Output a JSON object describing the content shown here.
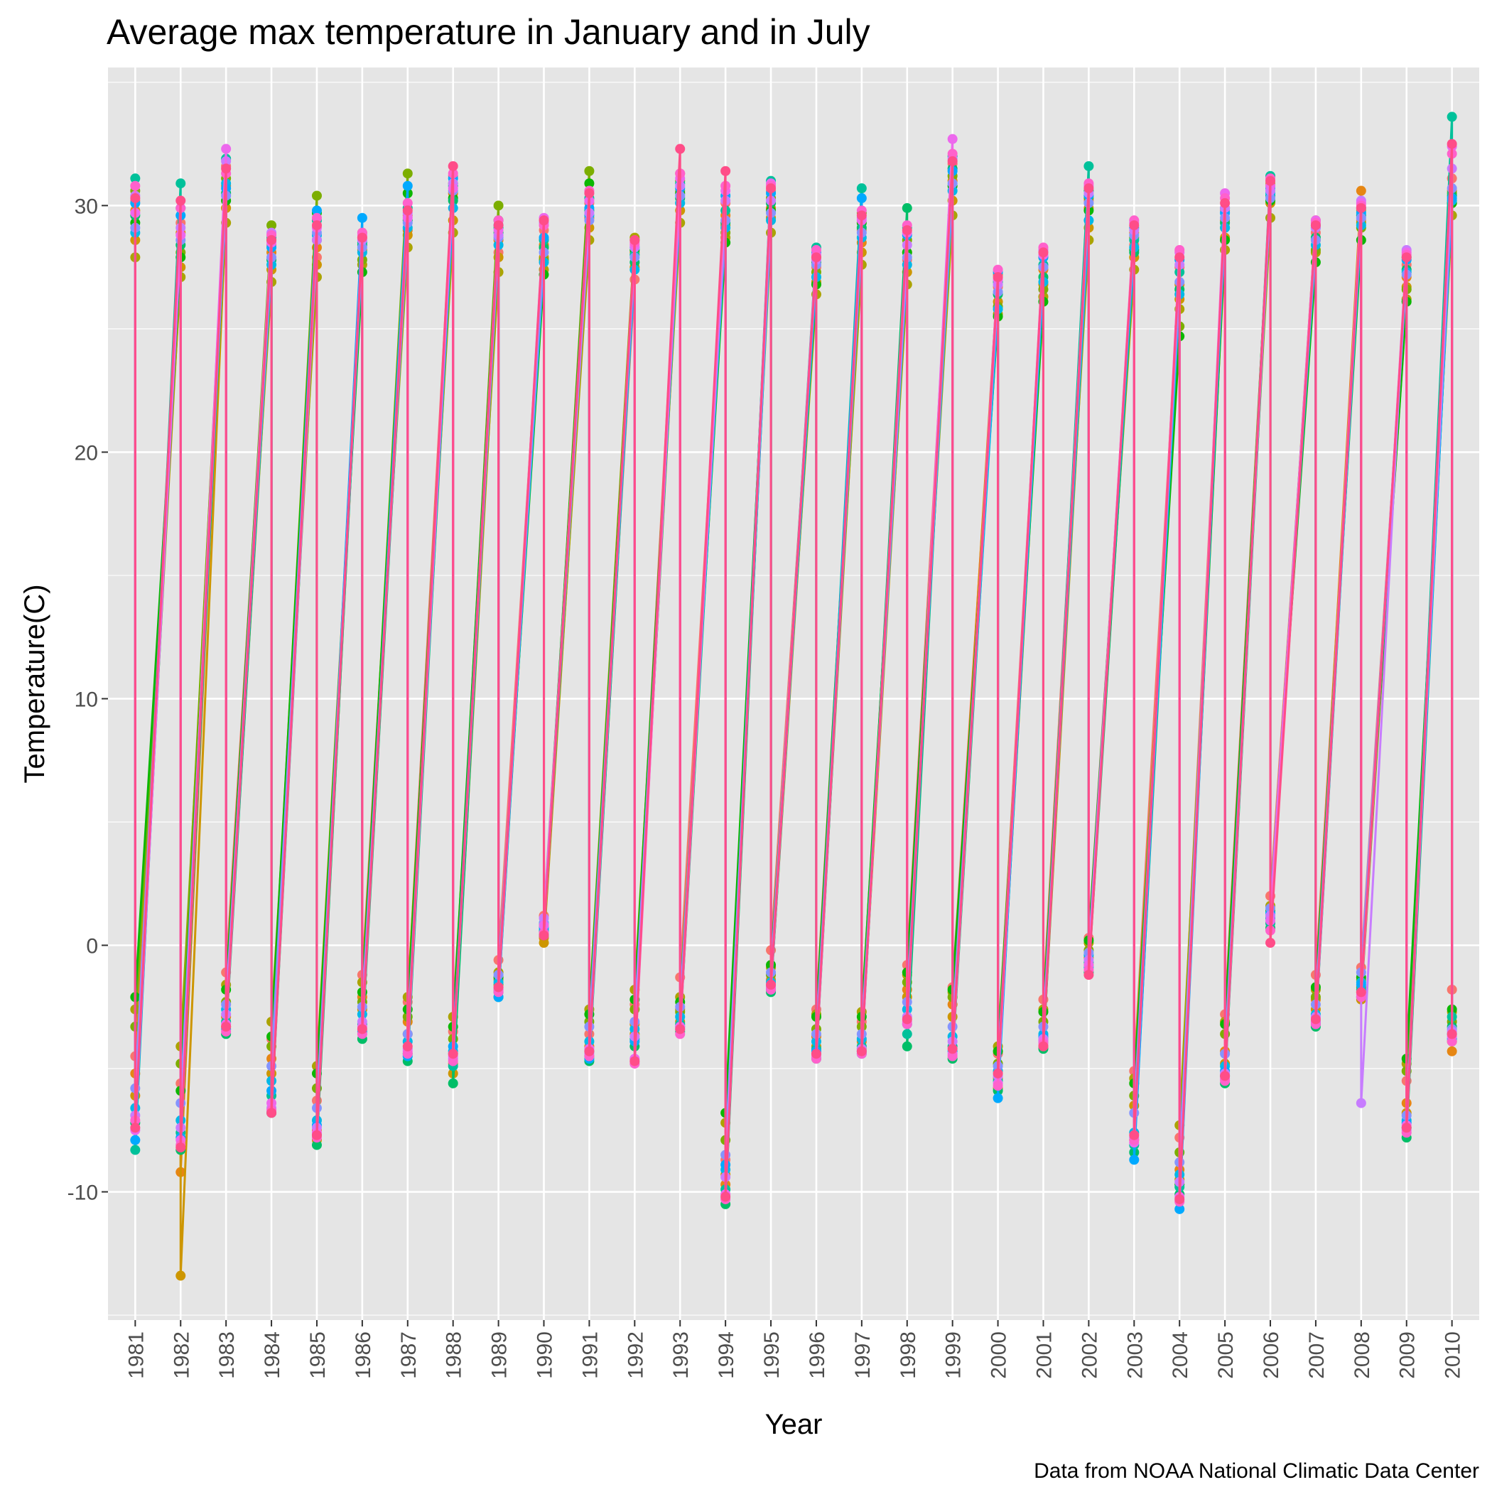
{
  "chart_data": {
    "type": "line",
    "title": "Average max temperature in January and in July",
    "xlabel": "Year",
    "ylabel": "Temperature(C)",
    "caption": "Data from NOAA National Climatic Data Center",
    "categories": [
      "1981",
      "1982",
      "1983",
      "1984",
      "1985",
      "1986",
      "1987",
      "1988",
      "1989",
      "1990",
      "1991",
      "1992",
      "1993",
      "1994",
      "1995",
      "1996",
      "1997",
      "1998",
      "1999",
      "2000",
      "2001",
      "2002",
      "2003",
      "2004",
      "2005",
      "2006",
      "2007",
      "2008",
      "2009",
      "2010"
    ],
    "xlim": [
      1980.4,
      2010.6
    ],
    "ylim": [
      -15.2,
      35.6
    ],
    "yticks": [
      -10,
      0,
      10,
      20,
      30
    ],
    "ytick_labels": [
      "-10",
      "0",
      "10",
      "20",
      "30"
    ],
    "grid": true,
    "legend": "none",
    "panel_background": "#e5e5e5",
    "gridline_color": "#ffffff",
    "marker": "point",
    "series": [
      {
        "color": "#F8766D",
        "july": [
          30.2,
          29.3,
          31.6,
          28.4,
          27.9,
          28.7,
          29.6,
          31.2,
          28.1,
          29.0,
          30.1,
          27.0,
          31.3,
          30.1,
          30.6,
          27.5,
          29.0,
          27.8,
          31.7,
          26.7,
          27.9,
          30.2,
          28.4,
          27.5,
          29.8,
          30.6,
          28.9,
          29.4,
          27.6,
          31.1
        ],
        "jan": [
          -4.5,
          -5.6,
          -1.1,
          -3.8,
          -6.3,
          -1.2,
          -2.3,
          -3.5,
          -0.6,
          1.2,
          -3.6,
          -2.4,
          -1.3,
          -8.7,
          -0.2,
          -2.6,
          -3.1,
          -0.8,
          -1.7,
          -4.4,
          -2.2,
          0.3,
          -5.1,
          -7.8,
          -2.8,
          2.0,
          -1.2,
          -0.9,
          -5.5,
          -1.8
        ]
      },
      {
        "color": "#E68613",
        "july": [
          29.8,
          28.9,
          30.8,
          28.1,
          28.3,
          28.9,
          29.0,
          30.5,
          28.6,
          28.4,
          29.5,
          28.1,
          30.6,
          29.6,
          29.9,
          27.9,
          28.5,
          28.1,
          31.0,
          27.2,
          27.4,
          29.9,
          28.9,
          26.8,
          29.4,
          30.9,
          29.4,
          30.6,
          27.1,
          30.6
        ],
        "jan": [
          -5.2,
          -9.2,
          -2.9,
          -4.6,
          -7.5,
          -2.1,
          -3.1,
          -4.8,
          -1.4,
          0.3,
          -4.1,
          -3.2,
          -2.6,
          -9.7,
          -1.4,
          -3.7,
          -3.9,
          -1.8,
          -2.4,
          -5.4,
          -3.8,
          -0.5,
          -7.9,
          -9.1,
          -4.3,
          1.2,
          -2.2,
          -1.9,
          -6.4,
          -4.3
        ]
      },
      {
        "color": "#CD9600",
        "july": [
          28.6,
          27.5,
          29.9,
          27.4,
          27.6,
          28.2,
          28.8,
          29.4,
          27.9,
          27.9,
          29.1,
          27.5,
          29.8,
          29.2,
          29.5,
          26.9,
          28.1,
          27.3,
          30.2,
          26.1,
          26.8,
          29.1,
          27.9,
          26.2,
          28.7,
          30.1,
          28.6,
          29.8,
          26.7,
          30.1
        ],
        "jan": [
          -6.1,
          -13.4,
          -3.3,
          -5.2,
          -7.9,
          -2.6,
          -3.6,
          -5.2,
          -1.8,
          0.1,
          -4.5,
          -3.6,
          -3.1,
          -9.3,
          -1.8,
          -4.1,
          -4.2,
          -2.1,
          -2.9,
          -5.8,
          -4.1,
          -0.8,
          -6.5,
          -9.5,
          -4.8,
          0.9,
          -2.6,
          -2.2,
          -6.8,
          -3.9
        ]
      },
      {
        "color": "#ABA300",
        "july": [
          27.9,
          27.1,
          29.3,
          26.9,
          27.1,
          27.6,
          28.3,
          28.9,
          27.3,
          27.4,
          28.6,
          28.7,
          29.3,
          28.7,
          28.9,
          26.4,
          27.6,
          26.8,
          29.6,
          25.6,
          26.3,
          28.6,
          27.4,
          25.8,
          28.2,
          29.5,
          28.1,
          29.3,
          26.2,
          29.6
        ],
        "jan": [
          -2.6,
          -4.1,
          -1.6,
          -3.1,
          -4.9,
          -1.5,
          -2.1,
          -2.9,
          -1.1,
          0.6,
          -2.6,
          -1.8,
          -2.1,
          -7.2,
          -0.9,
          -2.8,
          -2.7,
          -1.2,
          -1.9,
          -4.1,
          -2.6,
          0.1,
          -5.4,
          -7.3,
          -3.1,
          1.6,
          -1.8,
          -1.4,
          -4.8,
          -2.7
        ]
      },
      {
        "color": "#7CAE00",
        "july": [
          30.6,
          28.1,
          31.1,
          29.2,
          30.4,
          27.8,
          31.3,
          30.9,
          30.0,
          27.8,
          31.4,
          28.6,
          31.0,
          28.9,
          30.3,
          27.3,
          29.7,
          28.6,
          31.2,
          25.9,
          26.6,
          30.3,
          28.7,
          25.1,
          29.1,
          30.8,
          28.2,
          29.1,
          26.6,
          30.5
        ],
        "jan": [
          -3.3,
          -4.8,
          -2.3,
          -4.1,
          -5.8,
          -2.3,
          -2.9,
          -3.8,
          -1.6,
          0.5,
          -3.1,
          -2.6,
          -2.7,
          -7.9,
          -1.2,
          -3.4,
          -3.3,
          -1.5,
          -2.1,
          -4.8,
          -3.1,
          -0.2,
          -6.1,
          -8.4,
          -3.6,
          1.1,
          -2.1,
          -1.7,
          -5.1,
          -3.1
        ]
      },
      {
        "color": "#0CB702",
        "july": [
          29.3,
          27.9,
          30.2,
          28.6,
          29.7,
          27.3,
          30.5,
          30.3,
          29.4,
          27.2,
          30.9,
          28.2,
          30.5,
          28.5,
          29.8,
          26.8,
          29.3,
          28.1,
          30.8,
          25.5,
          26.1,
          29.8,
          28.2,
          24.7,
          28.6,
          30.2,
          27.7,
          28.6,
          26.1,
          30.1
        ],
        "jan": [
          -2.1,
          -5.9,
          -1.8,
          -3.7,
          -5.2,
          -1.9,
          -2.6,
          -3.3,
          -1.3,
          0.8,
          -2.8,
          -2.2,
          -2.3,
          -6.8,
          -0.8,
          -2.9,
          -2.9,
          -1.1,
          -1.8,
          -4.3,
          -2.7,
          0.2,
          -5.6,
          -9.7,
          -3.2,
          1.4,
          -1.7,
          -1.3,
          -4.6,
          -2.6
        ]
      },
      {
        "color": "#00BE67",
        "july": [
          29.6,
          28.4,
          30.5,
          27.8,
          28.6,
          28.4,
          29.4,
          30.2,
          28.9,
          28.3,
          29.8,
          27.7,
          30.3,
          29.3,
          30.1,
          27.7,
          29.1,
          29.9,
          31.5,
          26.4,
          27.1,
          30.6,
          28.1,
          26.6,
          29.3,
          30.4,
          28.7,
          29.6,
          27.4,
          30.4
        ],
        "jan": [
          -7.2,
          -8.3,
          -3.6,
          -6.8,
          -8.1,
          -3.8,
          -4.7,
          -5.6,
          -2.1,
          0.4,
          -4.7,
          -4.1,
          -3.5,
          -10.5,
          -1.9,
          -4.6,
          -4.3,
          -4.1,
          -4.6,
          -5.9,
          -4.2,
          -1.1,
          -8.4,
          -10.1,
          -5.6,
          0.7,
          -3.3,
          -2.1,
          -7.8,
          -3.3
        ]
      },
      {
        "color": "#00C19A",
        "july": [
          31.1,
          30.9,
          31.9,
          28.7,
          29.4,
          28.5,
          29.9,
          30.8,
          29.1,
          28.6,
          30.3,
          28.0,
          30.9,
          29.8,
          31.0,
          28.3,
          30.7,
          29.1,
          32.0,
          26.9,
          27.6,
          31.6,
          28.6,
          27.3,
          29.9,
          31.2,
          29.1,
          29.9,
          27.9,
          33.6
        ],
        "jan": [
          -8.3,
          -7.6,
          -3.1,
          -6.1,
          -7.7,
          -3.2,
          -4.4,
          -4.9,
          -1.9,
          0.9,
          -4.3,
          -3.8,
          -3.2,
          -9.9,
          -1.7,
          -4.2,
          -4.1,
          -3.6,
          -4.1,
          -5.5,
          -3.9,
          -0.7,
          -8.1,
          -9.8,
          -5.3,
          0.9,
          -3.1,
          -1.8,
          -7.4,
          -2.9
        ]
      },
      {
        "color": "#00B8E7",
        "july": [
          28.9,
          29.9,
          30.9,
          27.6,
          28.8,
          28.1,
          29.1,
          29.9,
          28.4,
          27.7,
          29.6,
          27.4,
          30.1,
          29.1,
          29.4,
          27.1,
          28.7,
          27.6,
          30.6,
          25.8,
          26.9,
          29.4,
          28.3,
          26.4,
          29.1,
          30.5,
          28.4,
          29.2,
          27.3,
          30.2
        ],
        "jan": [
          -6.6,
          -7.1,
          -2.6,
          -5.5,
          -7.1,
          -2.8,
          -3.9,
          -4.3,
          -1.5,
          0.6,
          -3.9,
          -3.4,
          -2.9,
          -9.1,
          -1.5,
          -3.9,
          -3.8,
          -2.6,
          -3.7,
          -5.1,
          -3.6,
          -0.4,
          -7.6,
          -9.3,
          -4.9,
          1.1,
          -2.8,
          -1.5,
          -7.1,
          -3.6
        ]
      },
      {
        "color": "#00A9FF",
        "july": [
          30.1,
          29.6,
          30.7,
          28.3,
          29.8,
          29.5,
          30.8,
          31.1,
          29.2,
          28.7,
          29.9,
          28.3,
          30.7,
          30.4,
          30.5,
          28.1,
          30.3,
          28.8,
          31.4,
          27.3,
          27.9,
          30.4,
          29.1,
          27.8,
          29.7,
          30.7,
          29.2,
          29.7,
          27.8,
          30.3
        ],
        "jan": [
          -7.9,
          -7.8,
          -3.4,
          -5.9,
          -7.3,
          -3.5,
          -4.5,
          -4.1,
          -2.1,
          0.7,
          -4.6,
          -3.9,
          -3.3,
          -8.9,
          -1.8,
          -4.3,
          -4.4,
          -3.2,
          -4.3,
          -6.2,
          -3.7,
          -0.9,
          -8.7,
          -10.7,
          -5.1,
          1.3,
          -3.2,
          -1.6,
          -7.2,
          -3.8
        ]
      },
      {
        "color": "#8494FF",
        "july": [
          29.1,
          28.6,
          30.4,
          27.9,
          28.9,
          28.3,
          29.3,
          30.6,
          28.7,
          28.1,
          29.4,
          27.9,
          30.4,
          29.4,
          29.7,
          27.6,
          28.9,
          27.9,
          30.9,
          26.5,
          27.5,
          30.1,
          28.8,
          26.9,
          29.5,
          30.3,
          28.6,
          29.5,
          27.2,
          30.7
        ],
        "jan": [
          -5.8,
          -6.4,
          -2.4,
          -4.9,
          -6.6,
          -2.5,
          -3.6,
          -4.4,
          -1.2,
          0.9,
          -3.3,
          -3.1,
          -2.5,
          -8.5,
          -1.1,
          -3.6,
          -3.6,
          -2.3,
          -3.3,
          -4.9,
          -3.3,
          -0.3,
          -6.8,
          -8.8,
          -4.4,
          1.5,
          -2.4,
          -1.1,
          -6.9,
          -3.4
        ]
      },
      {
        "color": "#C77CFF",
        "july": [
          30.4,
          29.1,
          31.8,
          28.9,
          28.6,
          28.6,
          29.7,
          30.9,
          28.8,
          29.3,
          29.7,
          28.3,
          30.8,
          30.2,
          30.2,
          27.8,
          29.5,
          28.4,
          31.9,
          26.8,
          28.2,
          30.5,
          29.0,
          27.6,
          29.9,
          30.6,
          29.1,
          30.2,
          28.2,
          31.5
        ],
        "jan": [
          -6.9,
          -7.4,
          -2.8,
          -6.6,
          -7.4,
          -3.1,
          -4.2,
          -4.6,
          -1.7,
          1.1,
          -4.4,
          -3.7,
          -3.4,
          -9.4,
          -1.6,
          -4.4,
          -4.2,
          -2.9,
          -3.9,
          -5.3,
          -3.8,
          -0.6,
          -7.8,
          -9.6,
          -5.2,
          1.2,
          -2.9,
          -6.4,
          -7.5,
          -3.5
        ]
      },
      {
        "color": "#ED68ED",
        "july": [
          29.7,
          28.8,
          32.3,
          28.5,
          29.1,
          28.8,
          29.5,
          30.7,
          29.0,
          29.5,
          30.2,
          28.4,
          31.1,
          30.6,
          30.9,
          28.0,
          29.4,
          28.9,
          32.7,
          27.0,
          28.0,
          30.8,
          29.3,
          28.1,
          30.5,
          30.8,
          29.4,
          30.1,
          28.1,
          32.4
        ],
        "jan": [
          -7.5,
          -7.9,
          -3.2,
          -6.4,
          -7.6,
          -3.3,
          -4.3,
          -4.5,
          -1.8,
          0.8,
          -4.2,
          -4.6,
          -3.3,
          -10.1,
          -1.7,
          -4.5,
          -4.3,
          -3.1,
          -4.4,
          -5.6,
          -3.9,
          -0.8,
          -8.0,
          -10.2,
          -5.4,
          1.0,
          -3.1,
          -2.0,
          -7.3,
          -3.7
        ]
      },
      {
        "color": "#FF61CC",
        "july": [
          30.8,
          29.9,
          31.3,
          28.8,
          29.5,
          28.9,
          30.1,
          31.3,
          29.4,
          29.2,
          30.6,
          28.5,
          31.3,
          30.8,
          30.8,
          28.2,
          29.8,
          29.2,
          32.1,
          27.4,
          28.3,
          30.9,
          29.4,
          28.2,
          30.3,
          31.1,
          29.3,
          30.0,
          28.0,
          32.1
        ],
        "jan": [
          -7.1,
          -8.1,
          -3.5,
          -6.7,
          -7.8,
          -3.6,
          -4.4,
          -4.7,
          -1.9,
          0.5,
          -4.5,
          -4.8,
          -3.6,
          -10.3,
          -1.8,
          -4.6,
          -4.4,
          -3.2,
          -4.5,
          -5.7,
          -4.0,
          -1.0,
          -7.9,
          -10.4,
          -5.5,
          0.6,
          -3.2,
          -2.1,
          -7.6,
          -3.9
        ]
      },
      {
        "color": "#FF4D88",
        "july": [
          30.3,
          30.2,
          31.5,
          28.6,
          29.2,
          28.7,
          29.8,
          31.6,
          29.2,
          29.4,
          30.5,
          28.6,
          32.3,
          31.4,
          30.7,
          27.9,
          29.6,
          29.0,
          31.8,
          27.1,
          28.1,
          30.7,
          29.2,
          27.9,
          30.1,
          31.0,
          29.2,
          29.9,
          27.9,
          32.5
        ],
        "jan": [
          -7.4,
          -8.2,
          -3.3,
          -6.8,
          -7.7,
          -3.4,
          -4.1,
          -4.4,
          -1.7,
          0.4,
          -4.3,
          -4.7,
          -3.4,
          -10.2,
          -1.6,
          -4.4,
          -4.3,
          -3.0,
          -4.2,
          -5.2,
          -4.1,
          -1.2,
          -7.7,
          -10.3,
          -5.3,
          0.1,
          -3.0,
          -1.9,
          -7.4,
          -3.6
        ]
      }
    ]
  }
}
